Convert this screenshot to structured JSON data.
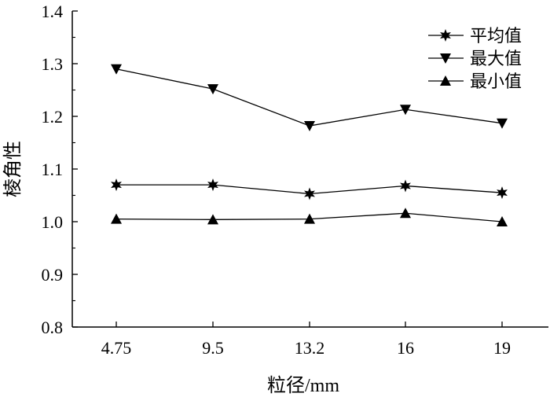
{
  "chart_data": {
    "type": "line",
    "title": "",
    "xlabel": "粒径/mm",
    "ylabel": "棱角性",
    "categories": [
      "4.75",
      "9.5",
      "13.2",
      "16",
      "19"
    ],
    "ylim": [
      0.8,
      1.4
    ],
    "yticks": [
      "0.8",
      "0.9",
      "1.0",
      "1.1",
      "1.2",
      "1.3",
      "1.4"
    ],
    "grid": false,
    "legend_position": "top-right",
    "series": [
      {
        "name": "平均值",
        "marker": "star",
        "values": [
          1.07,
          1.07,
          1.053,
          1.068,
          1.055
        ]
      },
      {
        "name": "最大值",
        "marker": "triangle-down",
        "values": [
          1.29,
          1.252,
          1.182,
          1.213,
          1.187
        ]
      },
      {
        "name": "最小值",
        "marker": "triangle-up",
        "values": [
          1.005,
          1.004,
          1.005,
          1.016,
          1.0
        ]
      }
    ]
  }
}
